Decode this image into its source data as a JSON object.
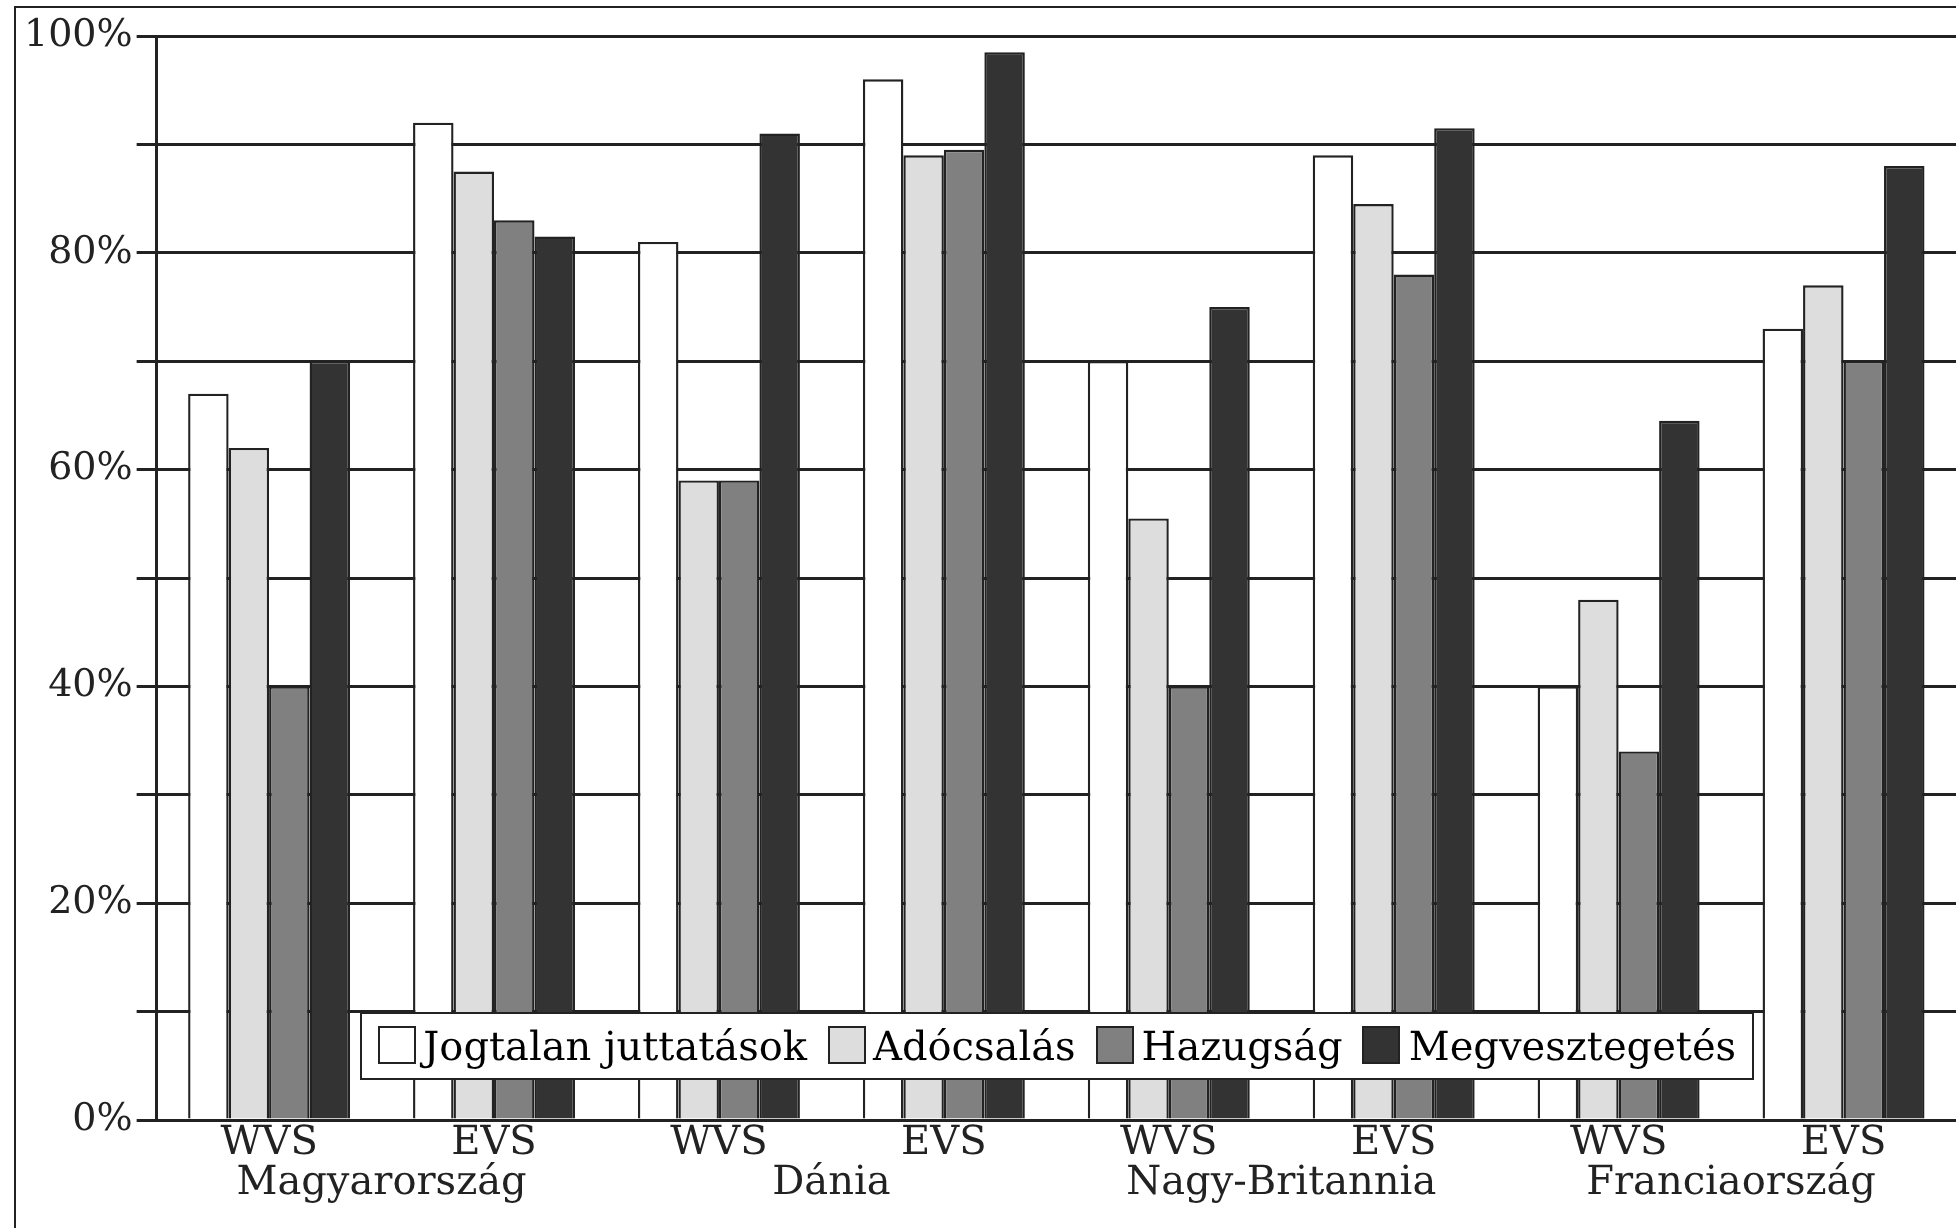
{
  "chart_data": {
    "type": "bar",
    "categories": [
      "WVS",
      "EVS",
      "WVS",
      "EVS",
      "WVS",
      "EVS",
      "WVS",
      "EVS"
    ],
    "series": [
      {
        "name": "Jogtalan juttatások",
        "color": "#ffffff",
        "values": [
          67,
          92,
          81,
          96,
          70,
          89,
          40,
          73
        ]
      },
      {
        "name": "Adócsalás",
        "color": "#dddddd",
        "values": [
          62,
          87.5,
          59,
          89,
          55.5,
          84.5,
          48,
          77
        ]
      },
      {
        "name": "Hazugság",
        "color": "#808080",
        "values": [
          40,
          83,
          59,
          89.5,
          40,
          78,
          34,
          70
        ]
      },
      {
        "name": "Megvesztegetés",
        "color": "#333333",
        "values": [
          70,
          81.5,
          91,
          98.5,
          75,
          91.5,
          64.5,
          88
        ]
      }
    ],
    "annotations": [
      "Magyarország",
      "Dánia",
      "Nagy-Britannia",
      "Franciaország"
    ],
    "ylim": [
      0,
      100
    ],
    "yticks": [
      {
        "value": 0,
        "label": "0%"
      },
      {
        "value": 10,
        "label": null
      },
      {
        "value": 20,
        "label": "20%"
      },
      {
        "value": 30,
        "label": null
      },
      {
        "value": 40,
        "label": "40%"
      },
      {
        "value": 50,
        "label": null
      },
      {
        "value": 60,
        "label": "60%"
      },
      {
        "value": 70,
        "label": null
      },
      {
        "value": 80,
        "label": "80%"
      },
      {
        "value": 90,
        "label": null
      },
      {
        "value": 100,
        "label": "100%"
      }
    ],
    "grid": "y",
    "legend": "bottom"
  }
}
